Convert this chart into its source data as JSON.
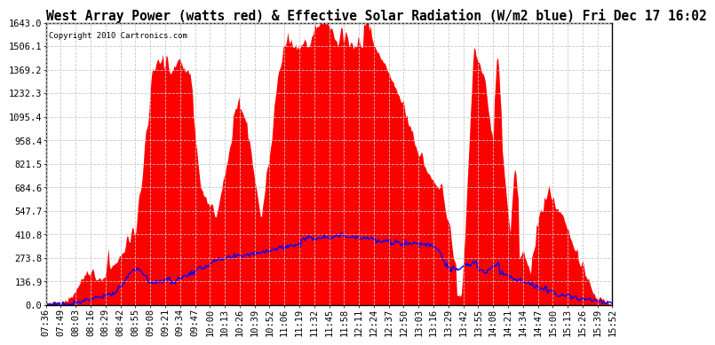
{
  "title": "West Array Power (watts red) & Effective Solar Radiation (W/m2 blue) Fri Dec 17 16:02",
  "copyright": "Copyright 2010 Cartronics.com",
  "background_color": "#ffffff",
  "plot_bg_color": "#ffffff",
  "grid_color": "#c8c8c8",
  "yticks": [
    0.0,
    136.9,
    273.8,
    410.8,
    547.7,
    684.6,
    821.5,
    958.4,
    1095.4,
    1232.3,
    1369.2,
    1506.1,
    1643.0
  ],
  "ymax": 1643.0,
  "ymin": 0.0,
  "x_labels": [
    "07:36",
    "07:49",
    "08:03",
    "08:16",
    "08:29",
    "08:42",
    "08:55",
    "09:08",
    "09:21",
    "09:34",
    "09:47",
    "10:00",
    "10:13",
    "10:26",
    "10:39",
    "10:52",
    "11:06",
    "11:19",
    "11:32",
    "11:45",
    "11:58",
    "12:11",
    "12:24",
    "12:37",
    "12:50",
    "13:03",
    "13:16",
    "13:29",
    "13:42",
    "13:55",
    "14:08",
    "14:21",
    "14:34",
    "14:47",
    "15:00",
    "15:13",
    "15:26",
    "15:39",
    "15:52"
  ],
  "red_fill_color": "#ff0000",
  "blue_line_color": "#0000ff",
  "title_fontsize": 10.5,
  "axis_fontsize": 7.5,
  "copyright_fontsize": 6.5
}
